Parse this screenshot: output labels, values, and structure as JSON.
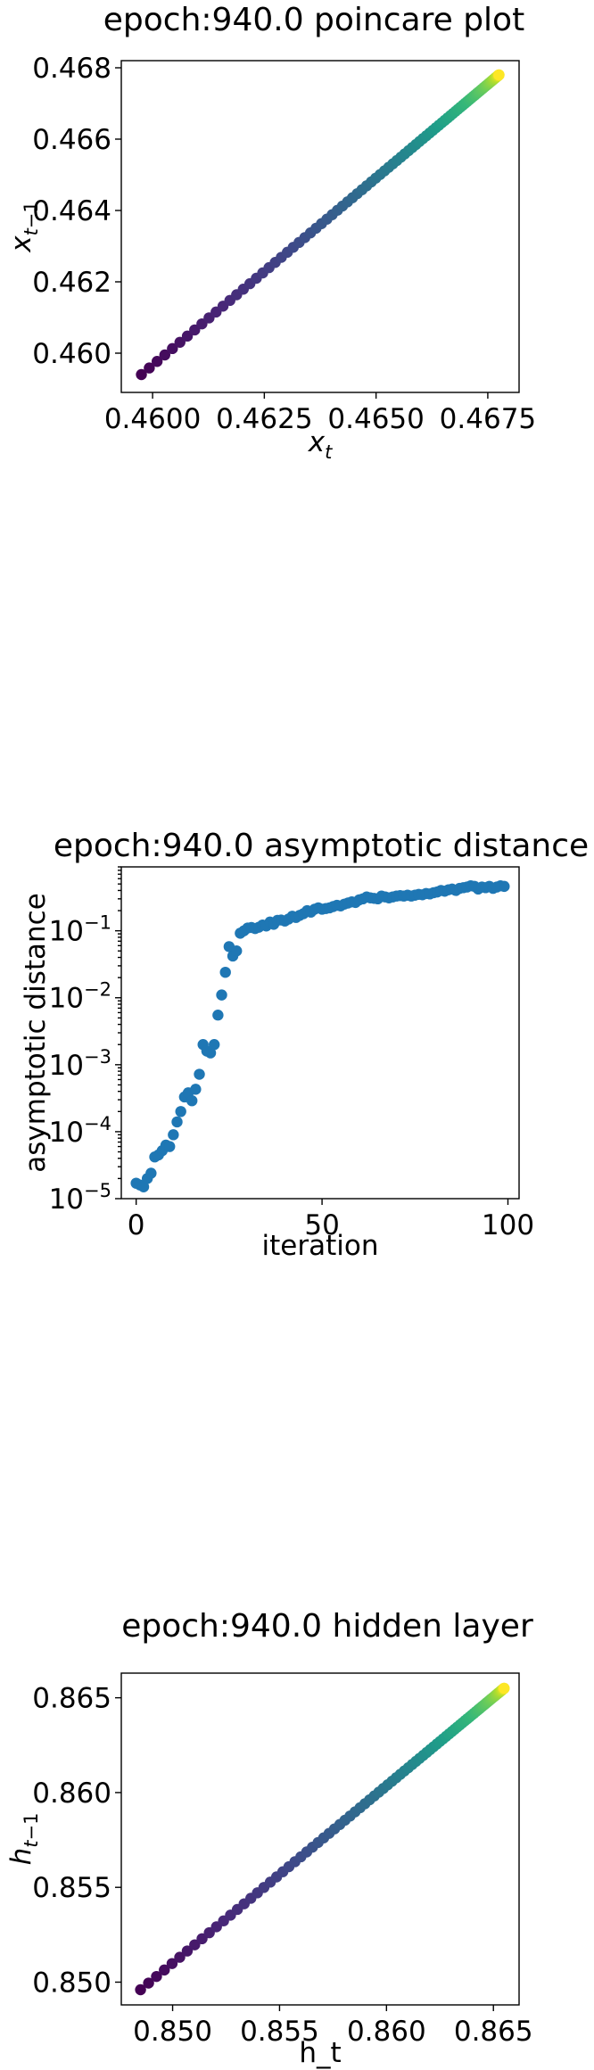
{
  "chart_data": [
    {
      "type": "scatter",
      "title": "epoch:940.0 poincare plot",
      "xlabel": "x_t",
      "ylabel": "x_{t-1}",
      "xlim": [
        0.4593,
        0.4682
      ],
      "ylim": [
        0.4589,
        0.4682
      ],
      "xticks": [
        0.46,
        0.4625,
        0.465,
        0.4675
      ],
      "xtick_labels": [
        "0.4600",
        "0.4625",
        "0.4650",
        "0.4675"
      ],
      "yticks": [
        0.46,
        0.462,
        0.464,
        0.466,
        0.468
      ],
      "ytick_labels": [
        "0.460",
        "0.462",
        "0.464",
        "0.466",
        "0.468"
      ],
      "colormap": "viridis",
      "series": [
        {
          "x_start": 0.45975,
          "x_end": 0.46775,
          "y_start": 0.4594,
          "y_end": 0.4678,
          "points": 100,
          "ordering": "geometric"
        }
      ]
    },
    {
      "type": "scatter",
      "title": "epoch:940.0 asymptotic distance",
      "xlabel": "iteration",
      "ylabel": "asymptotic distance",
      "yscale": "log",
      "xlim": [
        -4,
        103
      ],
      "ylim": [
        1e-05,
        0.9
      ],
      "xticks": [
        0,
        50,
        100
      ],
      "xtick_labels": [
        "0",
        "50",
        "100"
      ],
      "yticks": [
        1e-05,
        0.0001,
        0.001,
        0.01,
        0.1
      ],
      "ytick_labels": [
        {
          "base": "10",
          "exp": "−5"
        },
        {
          "base": "10",
          "exp": "−4"
        },
        {
          "base": "10",
          "exp": "−3"
        },
        {
          "base": "10",
          "exp": "−2"
        },
        {
          "base": "10",
          "exp": "−1"
        }
      ],
      "color": "#1f77b4",
      "series": [
        {
          "x": [
            0,
            1,
            2,
            3,
            4,
            5,
            6,
            7,
            8,
            9,
            10,
            11,
            12,
            13,
            14,
            15,
            16,
            17,
            18,
            19,
            20,
            21,
            22,
            23,
            24,
            25,
            26,
            27,
            28,
            29,
            30,
            31,
            32,
            33,
            34,
            35,
            36,
            37,
            38,
            39,
            40,
            41,
            42,
            43,
            44,
            45,
            46,
            47,
            48,
            49,
            50,
            51,
            52,
            53,
            54,
            55,
            56,
            57,
            58,
            59,
            60,
            61,
            62,
            63,
            64,
            65,
            66,
            67,
            68,
            69,
            70,
            71,
            72,
            73,
            74,
            75,
            76,
            77,
            78,
            79,
            80,
            81,
            82,
            83,
            84,
            85,
            86,
            87,
            88,
            89,
            90,
            91,
            92,
            93,
            94,
            95,
            96,
            97,
            98,
            99
          ],
          "y": [
            1.7e-05,
            1.6e-05,
            1.5e-05,
            2e-05,
            2.4e-05,
            4.2e-05,
            4.5e-05,
            5.2e-05,
            6.3e-05,
            6e-05,
            9e-05,
            0.00014,
            0.0002,
            0.00033,
            0.00038,
            0.00029,
            0.00043,
            0.00072,
            0.002,
            0.0016,
            0.0015,
            0.002,
            0.0055,
            0.011,
            0.024,
            0.058,
            0.042,
            0.05,
            0.092,
            0.1,
            0.11,
            0.112,
            0.108,
            0.113,
            0.122,
            0.118,
            0.135,
            0.125,
            0.143,
            0.145,
            0.14,
            0.15,
            0.165,
            0.158,
            0.17,
            0.18,
            0.2,
            0.19,
            0.21,
            0.22,
            0.21,
            0.215,
            0.22,
            0.23,
            0.24,
            0.235,
            0.25,
            0.26,
            0.27,
            0.265,
            0.29,
            0.3,
            0.32,
            0.31,
            0.305,
            0.3,
            0.33,
            0.32,
            0.31,
            0.32,
            0.33,
            0.335,
            0.33,
            0.34,
            0.33,
            0.34,
            0.35,
            0.345,
            0.36,
            0.355,
            0.37,
            0.38,
            0.4,
            0.39,
            0.41,
            0.42,
            0.4,
            0.43,
            0.44,
            0.45,
            0.47,
            0.46,
            0.42,
            0.45,
            0.44,
            0.46,
            0.43,
            0.45,
            0.47,
            0.46
          ]
        }
      ]
    },
    {
      "type": "scatter",
      "title": "epoch:940.0 hidden layer",
      "xlabel": "h_t",
      "ylabel": "h_{t-1}",
      "xlim": [
        0.8476,
        0.8662
      ],
      "ylim": [
        0.8488,
        0.8663
      ],
      "xticks": [
        0.85,
        0.855,
        0.86,
        0.865
      ],
      "xtick_labels": [
        "0.850",
        "0.855",
        "0.860",
        "0.865"
      ],
      "yticks": [
        0.85,
        0.855,
        0.86,
        0.865
      ],
      "ytick_labels": [
        "0.850",
        "0.855",
        "0.860",
        "0.865"
      ],
      "colormap": "viridis",
      "series": [
        {
          "x_start": 0.8485,
          "x_end": 0.8655,
          "y_start": 0.8496,
          "y_end": 0.8655,
          "points": 100,
          "ordering": "geometric"
        }
      ]
    }
  ]
}
